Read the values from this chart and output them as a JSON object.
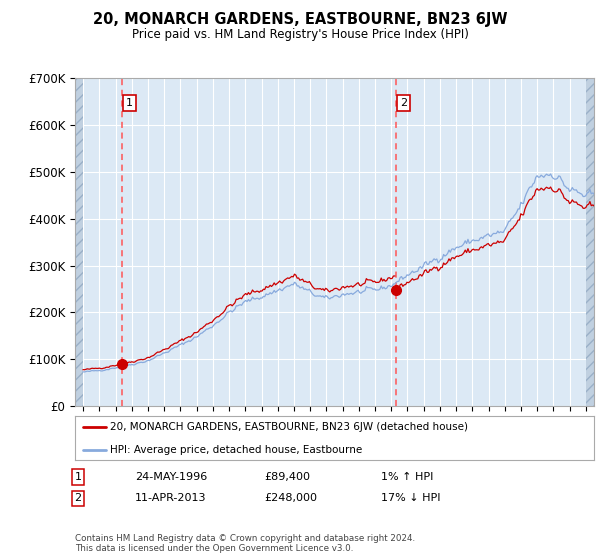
{
  "title": "20, MONARCH GARDENS, EASTBOURNE, BN23 6JW",
  "subtitle": "Price paid vs. HM Land Registry's House Price Index (HPI)",
  "ylabel_ticks": [
    "£0",
    "£100K",
    "£200K",
    "£300K",
    "£400K",
    "£500K",
    "£600K",
    "£700K"
  ],
  "ytick_vals": [
    0,
    100000,
    200000,
    300000,
    400000,
    500000,
    600000,
    700000
  ],
  "ylim": [
    0,
    700000
  ],
  "xlim_start": 1993.5,
  "xlim_end": 2025.5,
  "bg_color": "#dce9f5",
  "hatch_color": "#c0d0e0",
  "grid_color": "#ffffff",
  "red_line_color": "#cc0000",
  "blue_line_color": "#88aadd",
  "marker_color": "#cc0000",
  "dashed_line_color": "#ff5555",
  "sale1_x": 1996.38,
  "sale1_y": 89400,
  "sale2_x": 2013.27,
  "sale2_y": 248000,
  "legend_line1": "20, MONARCH GARDENS, EASTBOURNE, BN23 6JW (detached house)",
  "legend_line2": "HPI: Average price, detached house, Eastbourne",
  "table_row1_num": "1",
  "table_row1_date": "24-MAY-1996",
  "table_row1_price": "£89,400",
  "table_row1_hpi": "1% ↑ HPI",
  "table_row2_num": "2",
  "table_row2_date": "11-APR-2013",
  "table_row2_price": "£248,000",
  "table_row2_hpi": "17% ↓ HPI",
  "footer": "Contains HM Land Registry data © Crown copyright and database right 2024.\nThis data is licensed under the Open Government Licence v3.0."
}
